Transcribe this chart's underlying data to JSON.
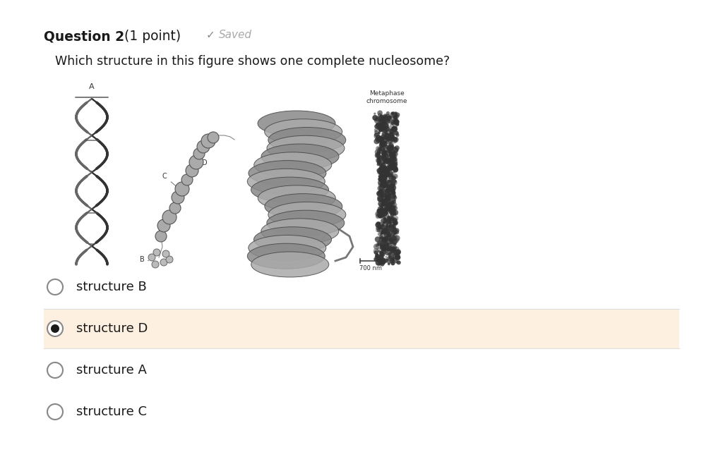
{
  "title_bold": "Question 2",
  "title_normal": " (1 point)",
  "saved_check": "✓",
  "saved_word": "Saved",
  "question_text": "Which structure in this figure shows one complete nucleosome?",
  "options": [
    {
      "label": "structure B",
      "selected": false
    },
    {
      "label": "structure D",
      "selected": true
    },
    {
      "label": "structure A",
      "selected": false
    },
    {
      "label": "structure C",
      "selected": false
    }
  ],
  "selected_bg_color": "#fdf0e0",
  "background_color": "#ffffff",
  "title_fontsize": 13.5,
  "question_fontsize": 12.5,
  "option_fontsize": 13,
  "saved_color": "#aaaaaa",
  "saved_check_color": "#888888",
  "text_color": "#1a1a1a",
  "option_text_color": "#1a1a1a",
  "radio_border_color": "#888888",
  "line_color": "#dddddd"
}
